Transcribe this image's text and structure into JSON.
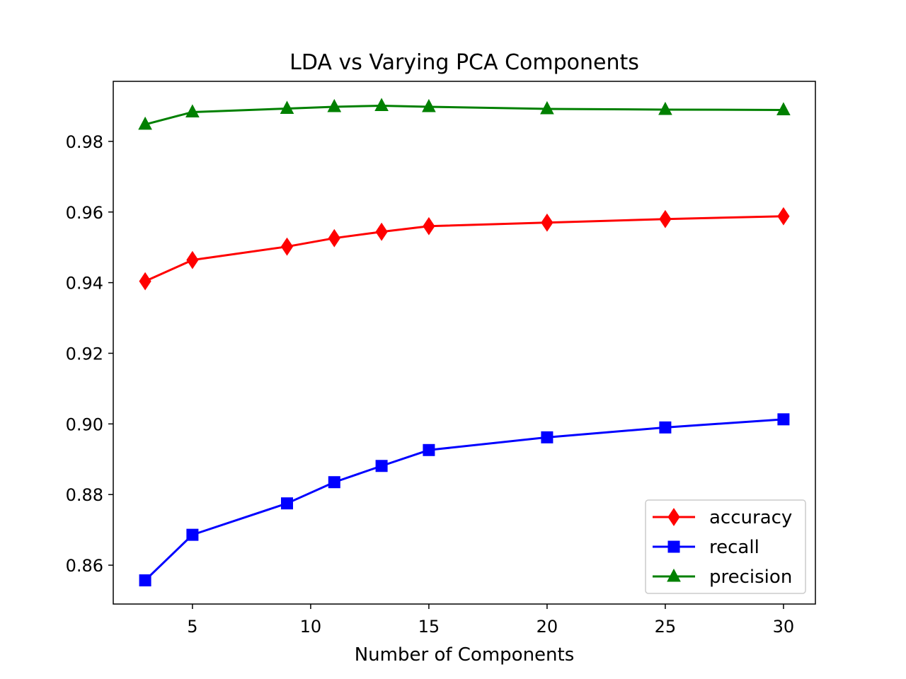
{
  "chart_data": {
    "type": "line",
    "title": "LDA vs Varying PCA Components",
    "xlabel": "Number of Components",
    "ylabel": "",
    "x": [
      3,
      5,
      9,
      11,
      13,
      15,
      20,
      25,
      30
    ],
    "xlim": [
      1.65,
      31.35
    ],
    "ylim": [
      0.849,
      0.997
    ],
    "xticks": [
      5,
      10,
      15,
      20,
      25,
      30
    ],
    "yticks": [
      0.86,
      0.88,
      0.9,
      0.92,
      0.94,
      0.96,
      0.98
    ],
    "xtick_labels": [
      "5",
      "10",
      "15",
      "20",
      "25",
      "30"
    ],
    "ytick_labels": [
      "0.86",
      "0.88",
      "0.90",
      "0.92",
      "0.94",
      "0.96",
      "0.98"
    ],
    "grid": false,
    "legend_position": "lower-right",
    "series": [
      {
        "name": "accuracy",
        "color": "#ff0000",
        "marker": "diamond",
        "values": [
          0.9404,
          0.9464,
          0.9502,
          0.9526,
          0.9544,
          0.956,
          0.957,
          0.958,
          0.9588
        ]
      },
      {
        "name": "recall",
        "color": "#0000ff",
        "marker": "square",
        "values": [
          0.8557,
          0.8686,
          0.8775,
          0.8835,
          0.8881,
          0.8926,
          0.8962,
          0.899,
          0.9013
        ]
      },
      {
        "name": "precision",
        "color": "#008000",
        "marker": "triangle",
        "values": [
          0.9848,
          0.9883,
          0.9893,
          0.9898,
          0.9901,
          0.9898,
          0.9892,
          0.989,
          0.9889
        ]
      }
    ]
  }
}
